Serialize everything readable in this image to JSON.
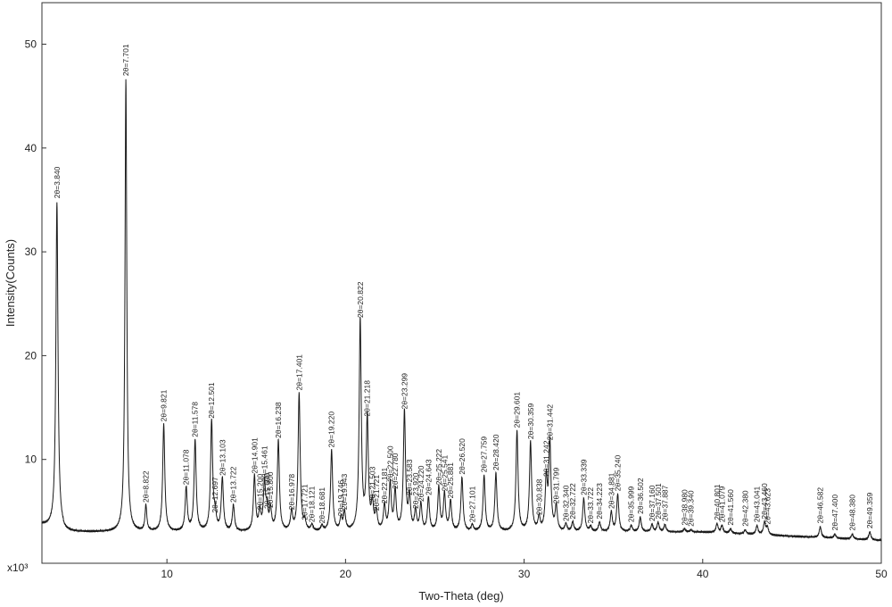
{
  "chart_data": {
    "type": "line",
    "xlabel": "Two-Theta (deg)",
    "ylabel": "Intensity(Counts)",
    "y_multiplier_label": "x10³",
    "xlim": [
      3,
      50
    ],
    "ylim": [
      0,
      54
    ],
    "x_ticks": [
      10,
      20,
      30,
      40,
      50
    ],
    "y_ticks": [
      10,
      20,
      30,
      40,
      50
    ],
    "grid": false,
    "baseline": 3.0,
    "line_color": "#1a1a1a",
    "peaks": [
      {
        "x": 3.84,
        "y": 34.8,
        "label": "2θ=3.840"
      },
      {
        "x": 7.701,
        "y": 46.6,
        "label": "2θ=7.701"
      },
      {
        "x": 8.822,
        "y": 5.5,
        "label": "2θ=8.822"
      },
      {
        "x": 9.821,
        "y": 13.3,
        "label": "2θ=9.821"
      },
      {
        "x": 11.078,
        "y": 7.2,
        "label": "2θ=11.078"
      },
      {
        "x": 11.578,
        "y": 11.8,
        "label": "2θ=11.578"
      },
      {
        "x": 12.501,
        "y": 13.6,
        "label": "2θ=12.501"
      },
      {
        "x": 12.697,
        "y": 4.5,
        "label": "2θ=12.697"
      },
      {
        "x": 13.103,
        "y": 8.1,
        "label": "2θ=13.103"
      },
      {
        "x": 13.722,
        "y": 5.5,
        "label": "2θ=13.722"
      },
      {
        "x": 14.901,
        "y": 8.3,
        "label": "2θ=14.901"
      },
      {
        "x": 15.2,
        "y": 4.8,
        "label": "2θ=15.200"
      },
      {
        "x": 15.461,
        "y": 7.5,
        "label": "2θ=15.461"
      },
      {
        "x": 15.6,
        "y": 4.9,
        "label": "2θ=15.600"
      },
      {
        "x": 15.8,
        "y": 5.0,
        "label": "2θ=15.800"
      },
      {
        "x": 16.238,
        "y": 11.7,
        "label": "2θ=16.238"
      },
      {
        "x": 16.978,
        "y": 4.8,
        "label": "2θ=16.978"
      },
      {
        "x": 17.401,
        "y": 16.3,
        "label": "2θ=17.401"
      },
      {
        "x": 17.721,
        "y": 3.8,
        "label": "2θ=17.721"
      },
      {
        "x": 18.121,
        "y": 3.6,
        "label": "2θ=18.121"
      },
      {
        "x": 18.681,
        "y": 3.5,
        "label": "2θ=18.681"
      },
      {
        "x": 19.22,
        "y": 10.8,
        "label": "2θ=19.220"
      },
      {
        "x": 19.746,
        "y": 4.2,
        "label": "2θ=19.746"
      },
      {
        "x": 19.943,
        "y": 4.8,
        "label": "2θ=19.943"
      },
      {
        "x": 20.822,
        "y": 23.3,
        "label": "2θ=20.822"
      },
      {
        "x": 21.218,
        "y": 13.8,
        "label": "2θ=21.218"
      },
      {
        "x": 21.503,
        "y": 5.5,
        "label": "2θ=21.503"
      },
      {
        "x": 21.721,
        "y": 4.7,
        "label": "2θ=21.721"
      },
      {
        "x": 22.181,
        "y": 5.4,
        "label": "2θ=22.181"
      },
      {
        "x": 22.5,
        "y": 7.5,
        "label": "2θ=22.500"
      },
      {
        "x": 22.78,
        "y": 6.8,
        "label": "2θ=22.780"
      },
      {
        "x": 23.299,
        "y": 14.5,
        "label": "2θ=23.299"
      },
      {
        "x": 23.583,
        "y": 6.2,
        "label": "2θ=23.583"
      },
      {
        "x": 23.92,
        "y": 4.9,
        "label": "2θ=23.920"
      },
      {
        "x": 24.22,
        "y": 5.6,
        "label": "2θ=24.220"
      },
      {
        "x": 24.643,
        "y": 6.2,
        "label": "2θ=24.643"
      },
      {
        "x": 25.222,
        "y": 7.2,
        "label": "2θ=25.222"
      },
      {
        "x": 25.541,
        "y": 6.6,
        "label": "2θ=25.541"
      },
      {
        "x": 25.881,
        "y": 5.9,
        "label": "2θ=25.881"
      },
      {
        "x": 26.52,
        "y": 8.2,
        "label": "2θ=26.520"
      },
      {
        "x": 27.101,
        "y": 3.6,
        "label": "2θ=27.101"
      },
      {
        "x": 27.759,
        "y": 8.4,
        "label": "2θ=27.759"
      },
      {
        "x": 28.42,
        "y": 8.6,
        "label": "2θ=28.420"
      },
      {
        "x": 29.601,
        "y": 12.7,
        "label": "2θ=29.601"
      },
      {
        "x": 30.359,
        "y": 11.6,
        "label": "2θ=30.359"
      },
      {
        "x": 30.838,
        "y": 4.3,
        "label": "2θ=30.838"
      },
      {
        "x": 31.242,
        "y": 8.0,
        "label": "2θ=31.242"
      },
      {
        "x": 31.442,
        "y": 11.5,
        "label": "2θ=31.442"
      },
      {
        "x": 31.799,
        "y": 5.4,
        "label": "2θ=31.799"
      },
      {
        "x": 32.34,
        "y": 3.7,
        "label": "2θ=32.340"
      },
      {
        "x": 32.722,
        "y": 3.9,
        "label": "2θ=32.722"
      },
      {
        "x": 33.339,
        "y": 6.2,
        "label": "2θ=33.339"
      },
      {
        "x": 33.722,
        "y": 3.5,
        "label": "2θ=33.722"
      },
      {
        "x": 34.223,
        "y": 3.9,
        "label": "2θ=34.223"
      },
      {
        "x": 34.881,
        "y": 4.9,
        "label": "2θ=34.881"
      },
      {
        "x": 35.24,
        "y": 6.6,
        "label": "2θ=35.240"
      },
      {
        "x": 35.999,
        "y": 3.6,
        "label": "2θ=35.999"
      },
      {
        "x": 36.502,
        "y": 4.4,
        "label": "2θ=36.502"
      },
      {
        "x": 37.16,
        "y": 3.7,
        "label": "2θ=37.160"
      },
      {
        "x": 37.501,
        "y": 3.9,
        "label": "2θ=37.501"
      },
      {
        "x": 37.887,
        "y": 3.7,
        "label": "2θ=37.887"
      },
      {
        "x": 38.98,
        "y": 3.3,
        "label": "2θ=38.980"
      },
      {
        "x": 39.34,
        "y": 3.2,
        "label": "2θ=39.340"
      },
      {
        "x": 40.801,
        "y": 3.8,
        "label": "2θ=40.801"
      },
      {
        "x": 41.079,
        "y": 3.6,
        "label": "2θ=41.079"
      },
      {
        "x": 41.56,
        "y": 3.3,
        "label": "2θ=41.560"
      },
      {
        "x": 42.38,
        "y": 3.2,
        "label": "2θ=42.380"
      },
      {
        "x": 43.041,
        "y": 3.6,
        "label": "2θ=43.041"
      },
      {
        "x": 43.46,
        "y": 3.9,
        "label": "2θ=43.460"
      },
      {
        "x": 43.623,
        "y": 3.4,
        "label": "2θ=43.623"
      },
      {
        "x": 46.582,
        "y": 3.5,
        "label": "2θ=46.582"
      },
      {
        "x": 47.4,
        "y": 2.8,
        "label": "2θ=47.400"
      },
      {
        "x": 48.38,
        "y": 2.8,
        "label": "2θ=48.380"
      },
      {
        "x": 49.359,
        "y": 3.0,
        "label": "2θ=49.359"
      }
    ]
  }
}
